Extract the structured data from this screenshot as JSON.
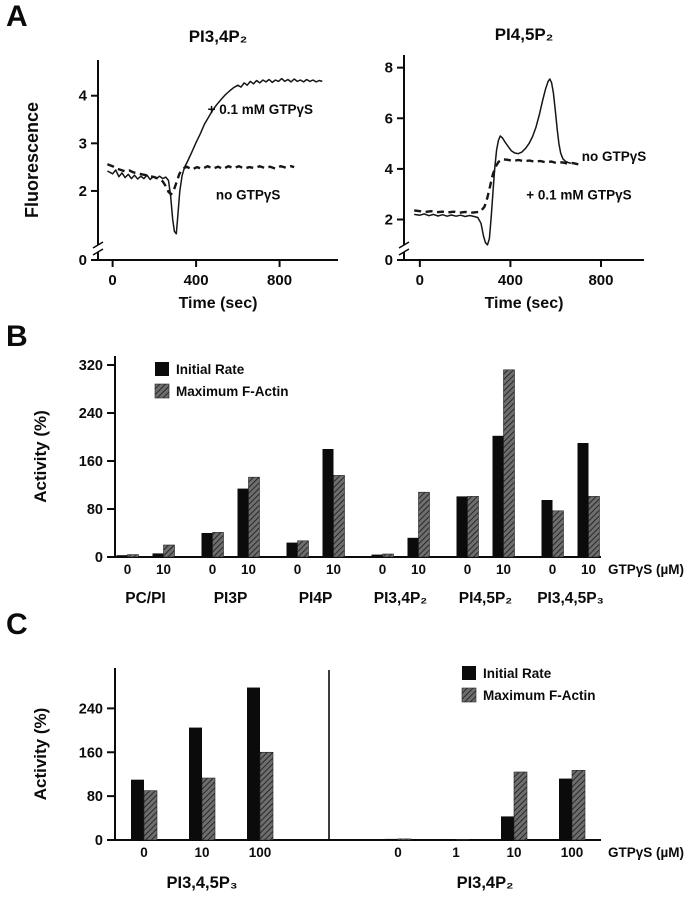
{
  "figure": {
    "panel_a_label": "A",
    "panel_b_label": "B",
    "panel_c_label": "C"
  },
  "chart_data": [
    {
      "id": "pi34p2-timecourse",
      "type": "line",
      "title": "PI3,4P₂",
      "ylabel": "Fluorescence",
      "xlabel": "Time (sec)",
      "xticks": [
        0,
        400,
        800
      ],
      "yticks": [
        2,
        3,
        4
      ],
      "y_zero_tick": "0",
      "xlim": [
        -70,
        1080
      ],
      "ylim": [
        0.55,
        4.75
      ],
      "axis_break": true,
      "legend_position": "inline-annotations",
      "grid": false,
      "series": [
        {
          "name": "+ 0.1 mM GTPγS",
          "line": "solid",
          "points": [
            [
              -25,
              2.42
            ],
            [
              0,
              2.36
            ],
            [
              15,
              2.44
            ],
            [
              30,
              2.3
            ],
            [
              45,
              2.38
            ],
            [
              60,
              2.28
            ],
            [
              75,
              2.35
            ],
            [
              90,
              2.26
            ],
            [
              105,
              2.33
            ],
            [
              120,
              2.25
            ],
            [
              135,
              2.31
            ],
            [
              150,
              2.26
            ],
            [
              165,
              2.33
            ],
            [
              180,
              2.24
            ],
            [
              195,
              2.3
            ],
            [
              210,
              2.26
            ],
            [
              225,
              2.31
            ],
            [
              240,
              2.26
            ],
            [
              255,
              2.29
            ],
            [
              268,
              2.22
            ],
            [
              278,
              1.9
            ],
            [
              288,
              1.4
            ],
            [
              296,
              1.15
            ],
            [
              305,
              1.1
            ],
            [
              313,
              1.5
            ],
            [
              322,
              2.0
            ],
            [
              333,
              2.32
            ],
            [
              345,
              2.5
            ],
            [
              360,
              2.63
            ],
            [
              380,
              2.82
            ],
            [
              400,
              3.02
            ],
            [
              420,
              3.2
            ],
            [
              440,
              3.4
            ],
            [
              460,
              3.55
            ],
            [
              480,
              3.7
            ],
            [
              500,
              3.82
            ],
            [
              520,
              3.92
            ],
            [
              540,
              4.02
            ],
            [
              560,
              4.1
            ],
            [
              580,
              4.17
            ],
            [
              600,
              4.22
            ],
            [
              615,
              4.18
            ],
            [
              630,
              4.27
            ],
            [
              645,
              4.22
            ],
            [
              660,
              4.3
            ],
            [
              675,
              4.25
            ],
            [
              690,
              4.32
            ],
            [
              705,
              4.27
            ],
            [
              720,
              4.33
            ],
            [
              735,
              4.29
            ],
            [
              750,
              4.34
            ],
            [
              765,
              4.28
            ],
            [
              780,
              4.33
            ],
            [
              795,
              4.3
            ],
            [
              810,
              4.36
            ],
            [
              825,
              4.3
            ],
            [
              840,
              4.34
            ],
            [
              855,
              4.29
            ],
            [
              870,
              4.35
            ],
            [
              885,
              4.3
            ],
            [
              900,
              4.33
            ],
            [
              915,
              4.29
            ],
            [
              930,
              4.34
            ],
            [
              945,
              4.3
            ],
            [
              960,
              4.33
            ],
            [
              975,
              4.29
            ],
            [
              990,
              4.32
            ],
            [
              1005,
              4.3
            ]
          ]
        },
        {
          "name": "no GTPγS",
          "line": "dashed",
          "points": [
            [
              -25,
              2.56
            ],
            [
              0,
              2.52
            ],
            [
              20,
              2.47
            ],
            [
              40,
              2.44
            ],
            [
              60,
              2.41
            ],
            [
              80,
              2.43
            ],
            [
              100,
              2.39
            ],
            [
              120,
              2.37
            ],
            [
              140,
              2.35
            ],
            [
              160,
              2.33
            ],
            [
              180,
              2.31
            ],
            [
              200,
              2.29
            ],
            [
              220,
              2.26
            ],
            [
              240,
              2.2
            ],
            [
              255,
              2.1
            ],
            [
              268,
              1.98
            ],
            [
              280,
              1.93
            ],
            [
              292,
              2.0
            ],
            [
              306,
              2.18
            ],
            [
              320,
              2.36
            ],
            [
              335,
              2.46
            ],
            [
              355,
              2.51
            ],
            [
              380,
              2.45
            ],
            [
              405,
              2.5
            ],
            [
              430,
              2.46
            ],
            [
              455,
              2.52
            ],
            [
              480,
              2.47
            ],
            [
              505,
              2.51
            ],
            [
              530,
              2.46
            ],
            [
              555,
              2.52
            ],
            [
              580,
              2.48
            ],
            [
              605,
              2.52
            ],
            [
              630,
              2.47
            ],
            [
              655,
              2.5
            ],
            [
              680,
              2.48
            ],
            [
              705,
              2.52
            ],
            [
              730,
              2.48
            ],
            [
              755,
              2.51
            ],
            [
              780,
              2.47
            ],
            [
              805,
              2.52
            ],
            [
              830,
              2.49
            ],
            [
              855,
              2.52
            ],
            [
              870,
              2.5
            ]
          ]
        }
      ],
      "annotations": [
        {
          "text": "+ 0.1 mM GTPγS",
          "x": 455,
          "y": 3.62,
          "anchor": "start"
        },
        {
          "text": "no GTPγS",
          "x": 495,
          "y": 1.82,
          "anchor": "start"
        }
      ]
    },
    {
      "id": "pi45p2-timecourse",
      "type": "line",
      "title": "PI4,5P₂",
      "ylabel": "",
      "xlabel": "Time (sec)",
      "xticks": [
        0,
        400,
        800
      ],
      "yticks": [
        2,
        4,
        6,
        8
      ],
      "y_zero_tick": "0",
      "xlim": [
        -70,
        990
      ],
      "ylim": [
        0.4,
        8.5
      ],
      "axis_break": true,
      "legend_position": "inline-annotations",
      "grid": false,
      "series": [
        {
          "name": "+ 0.1 mM GTPγS",
          "line": "solid",
          "points": [
            [
              -25,
              2.2
            ],
            [
              0,
              2.17
            ],
            [
              20,
              2.22
            ],
            [
              40,
              2.15
            ],
            [
              60,
              2.2
            ],
            [
              80,
              2.14
            ],
            [
              100,
              2.19
            ],
            [
              120,
              2.13
            ],
            [
              140,
              2.18
            ],
            [
              160,
              2.13
            ],
            [
              180,
              2.17
            ],
            [
              200,
              2.12
            ],
            [
              220,
              2.16
            ],
            [
              240,
              2.12
            ],
            [
              256,
              2.08
            ],
            [
              270,
              1.85
            ],
            [
              281,
              1.35
            ],
            [
              290,
              1.08
            ],
            [
              299,
              1.0
            ],
            [
              307,
              1.25
            ],
            [
              315,
              2.1
            ],
            [
              323,
              3.1
            ],
            [
              331,
              4.05
            ],
            [
              339,
              4.75
            ],
            [
              347,
              5.12
            ],
            [
              355,
              5.3
            ],
            [
              365,
              5.22
            ],
            [
              377,
              5.05
            ],
            [
              390,
              4.88
            ],
            [
              404,
              4.72
            ],
            [
              418,
              4.63
            ],
            [
              434,
              4.6
            ],
            [
              450,
              4.66
            ],
            [
              466,
              4.8
            ],
            [
              482,
              5.0
            ],
            [
              498,
              5.28
            ],
            [
              513,
              5.65
            ],
            [
              528,
              6.15
            ],
            [
              542,
              6.7
            ],
            [
              555,
              7.15
            ],
            [
              566,
              7.45
            ],
            [
              574,
              7.55
            ],
            [
              582,
              7.4
            ],
            [
              590,
              7.0
            ],
            [
              598,
              6.35
            ],
            [
              606,
              5.6
            ],
            [
              614,
              5.0
            ],
            [
              622,
              4.62
            ],
            [
              632,
              4.4
            ],
            [
              643,
              4.3
            ],
            [
              656,
              4.25
            ],
            [
              668,
              4.22
            ]
          ]
        },
        {
          "name": "no GTPγS",
          "line": "dashed",
          "points": [
            [
              -25,
              2.36
            ],
            [
              0,
              2.33
            ],
            [
              25,
              2.3
            ],
            [
              50,
              2.33
            ],
            [
              75,
              2.29
            ],
            [
              100,
              2.31
            ],
            [
              125,
              2.28
            ],
            [
              150,
              2.31
            ],
            [
              175,
              2.27
            ],
            [
              200,
              2.3
            ],
            [
              225,
              2.27
            ],
            [
              250,
              2.29
            ],
            [
              268,
              2.32
            ],
            [
              285,
              2.5
            ],
            [
              298,
              2.85
            ],
            [
              310,
              3.3
            ],
            [
              322,
              3.78
            ],
            [
              334,
              4.08
            ],
            [
              348,
              4.28
            ],
            [
              365,
              4.38
            ],
            [
              388,
              4.36
            ],
            [
              412,
              4.31
            ],
            [
              436,
              4.35
            ],
            [
              460,
              4.3
            ],
            [
              484,
              4.33
            ],
            [
              508,
              4.28
            ],
            [
              532,
              4.31
            ],
            [
              556,
              4.26
            ],
            [
              580,
              4.29
            ],
            [
              604,
              4.23
            ],
            [
              628,
              4.26
            ],
            [
              652,
              4.21
            ],
            [
              676,
              4.23
            ],
            [
              700,
              4.18
            ]
          ]
        }
      ],
      "annotations": [
        {
          "text": "no GTPγS",
          "x": 715,
          "y": 4.32,
          "anchor": "start"
        },
        {
          "text": "+ 0.1 mM GTPγS",
          "x": 470,
          "y": 2.8,
          "anchor": "start"
        }
      ]
    },
    {
      "id": "activity-by-lipid",
      "type": "bar",
      "title": "",
      "ylabel": "Activity (%)",
      "x_axis_right_label": "GTPγS (µM)",
      "yticks": [
        0,
        80,
        160,
        240,
        320
      ],
      "ylim": [
        0,
        340
      ],
      "grid": false,
      "legend": [
        "Initial Rate",
        "Maximum F-Actin"
      ],
      "legend_position": "top-left",
      "series_colors": [
        "#0b0b0b",
        "hatched-gray"
      ],
      "groups": [
        {
          "category": "PC/PI",
          "subgroups": [
            {
              "label": "0",
              "values": [
                3,
                4
              ]
            },
            {
              "label": "10",
              "values": [
                6,
                20
              ]
            }
          ]
        },
        {
          "category": "PI3P",
          "subgroups": [
            {
              "label": "0",
              "values": [
                40,
                41
              ]
            },
            {
              "label": "10",
              "values": [
                114,
                133
              ]
            }
          ]
        },
        {
          "category": "PI4P",
          "subgroups": [
            {
              "label": "0",
              "values": [
                24,
                27
              ]
            },
            {
              "label": "10",
              "values": [
                180,
                136
              ]
            }
          ]
        },
        {
          "category": "PI3,4P₂",
          "subgroups": [
            {
              "label": "0",
              "values": [
                4,
                5
              ]
            },
            {
              "label": "10",
              "values": [
                32,
                108
              ]
            }
          ]
        },
        {
          "category": "PI4,5P₂",
          "subgroups": [
            {
              "label": "0",
              "values": [
                101,
                101
              ]
            },
            {
              "label": "10",
              "values": [
                202,
                312
              ]
            }
          ]
        },
        {
          "category": "PI3,4,5P₃",
          "subgroups": [
            {
              "label": "0",
              "values": [
                95,
                77
              ]
            },
            {
              "label": "10",
              "values": [
                190,
                101
              ]
            }
          ]
        }
      ]
    },
    {
      "id": "activity-dose-response",
      "type": "bar",
      "title": "",
      "ylabel": "Activity (%)",
      "x_axis_right_label": "GTPγS (µM)",
      "yticks": [
        0,
        80,
        160,
        240
      ],
      "ylim": [
        0,
        310
      ],
      "grid": false,
      "legend": [
        "Initial Rate",
        "Maximum F-Actin"
      ],
      "legend_position": "top-right",
      "series_colors": [
        "#0b0b0b",
        "hatched-gray"
      ],
      "divider_between_groups": true,
      "groups": [
        {
          "category": "PI3,4,5P₃",
          "subgroups": [
            {
              "label": "0",
              "values": [
                110,
                90
              ]
            },
            {
              "label": "10",
              "values": [
                205,
                113
              ]
            },
            {
              "label": "100",
              "values": [
                278,
                160
              ]
            }
          ]
        },
        {
          "category": "PI3,4P₂",
          "subgroups": [
            {
              "label": "0",
              "values": [
                2,
                2
              ]
            },
            {
              "label": "1",
              "values": [
                1,
                1
              ]
            },
            {
              "label": "10",
              "values": [
                43,
                124
              ]
            },
            {
              "label": "100",
              "values": [
                112,
                127
              ]
            }
          ]
        }
      ]
    }
  ]
}
